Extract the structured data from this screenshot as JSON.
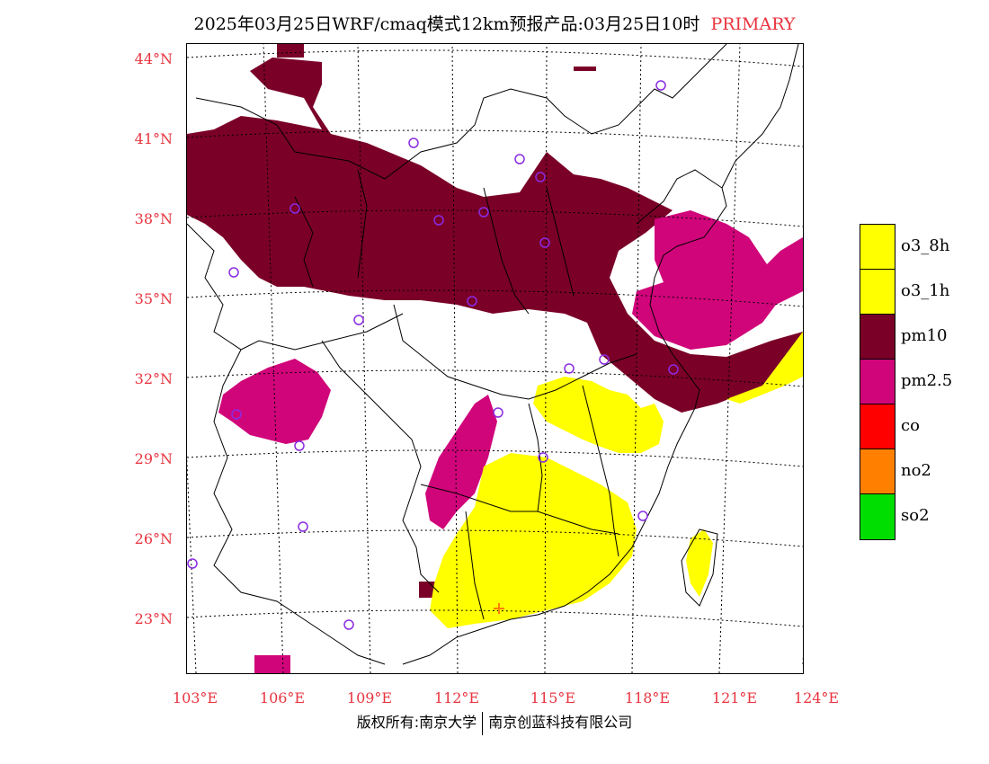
{
  "header": {
    "title": "2025年03月25日WRF/cmaq模式12km预报产品:03月25日10时",
    "primary": "PRIMARY"
  },
  "map": {
    "lat_labels": [
      "44°N",
      "41°N",
      "38°N",
      "35°N",
      "32°N",
      "29°N",
      "26°N",
      "23°N"
    ],
    "lon_labels": [
      "103°E",
      "106°E",
      "109°E",
      "112°E",
      "115°E",
      "118°E",
      "121°E",
      "124°E"
    ]
  },
  "legend": {
    "items": [
      {
        "label": "o3_8h",
        "color": "#ffff00"
      },
      {
        "label": "o3_1h",
        "color": "#ffff00"
      },
      {
        "label": "pm10",
        "color": "#7a0028"
      },
      {
        "label": "pm2.5",
        "color": "#d0057a"
      },
      {
        "label": "co",
        "color": "#ff0000"
      },
      {
        "label": "no2",
        "color": "#ff8000"
      },
      {
        "label": "so2",
        "color": "#00dd00"
      }
    ]
  },
  "footer": {
    "owner": "版权所有:南京大学",
    "company": "南京创蓝科技有限公司"
  },
  "colors": {
    "pm10": "#7a0028",
    "pm25": "#d0057a",
    "o3": "#ffff00",
    "station": "#8a2be2",
    "axis_label": "#e8343f"
  }
}
